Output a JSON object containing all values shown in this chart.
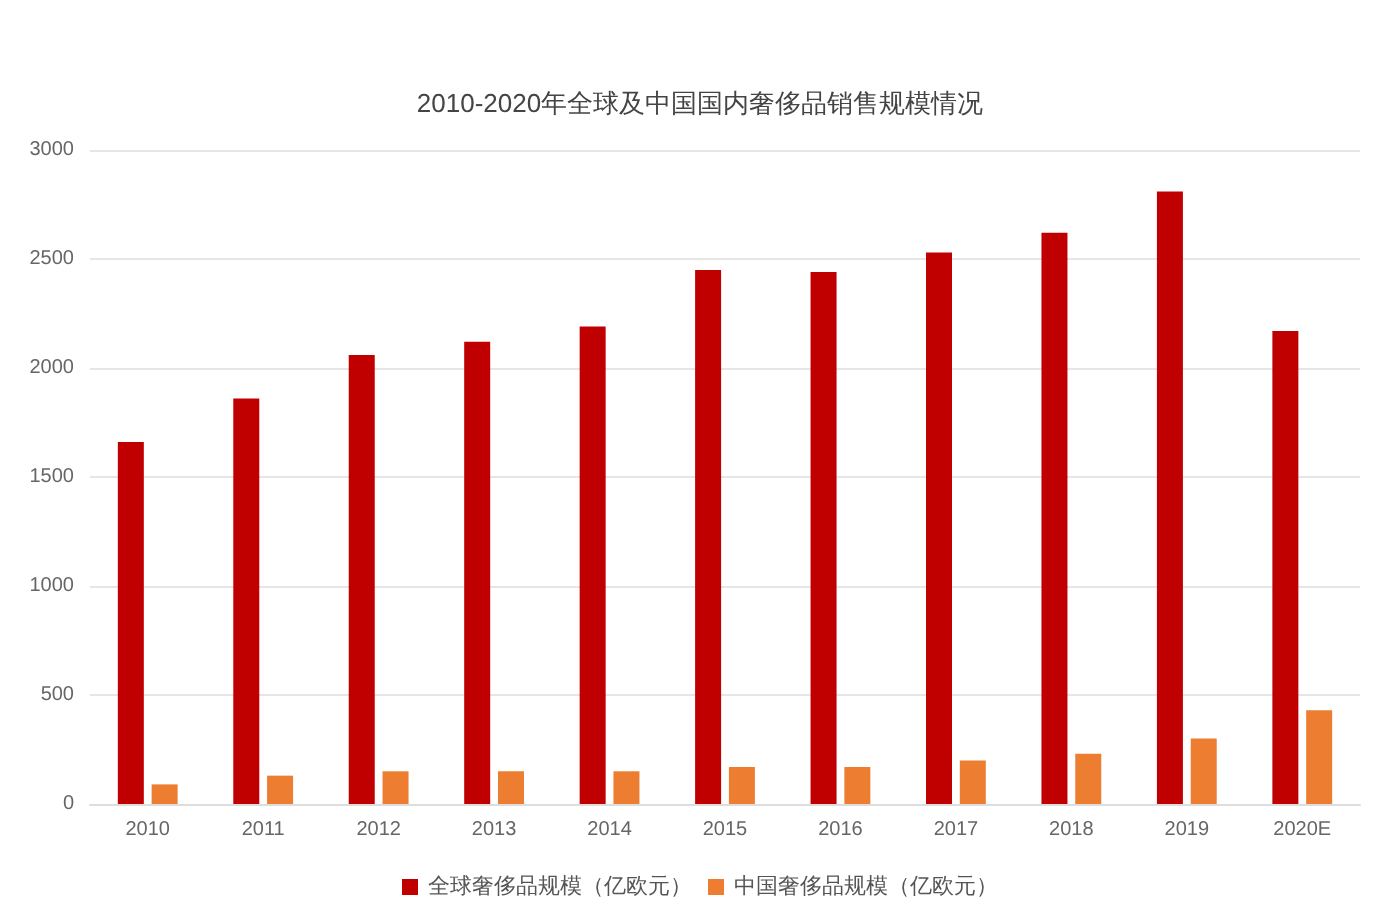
{
  "chart_data": {
    "type": "bar",
    "title": "2010-2020年全球及中国国内奢侈品销售规模情况",
    "categories": [
      "2010",
      "2011",
      "2012",
      "2013",
      "2014",
      "2015",
      "2016",
      "2017",
      "2018",
      "2019",
      "2020E"
    ],
    "series": [
      {
        "name": "全球奢侈品规模（亿欧元）",
        "color": "#c00000",
        "values": [
          1660,
          1860,
          2060,
          2120,
          2190,
          2450,
          2440,
          2530,
          2620,
          2810,
          2170
        ]
      },
      {
        "name": "中国奢侈品规模（亿欧元）",
        "color": "#ed7d31",
        "values": [
          90,
          130,
          150,
          150,
          150,
          170,
          170,
          200,
          230,
          300,
          430
        ]
      }
    ],
    "ylim": [
      0,
      3000
    ],
    "yticks": [
      0,
      500,
      1000,
      1500,
      2000,
      2500,
      3000
    ],
    "grid": "y",
    "legend": "bottom"
  }
}
